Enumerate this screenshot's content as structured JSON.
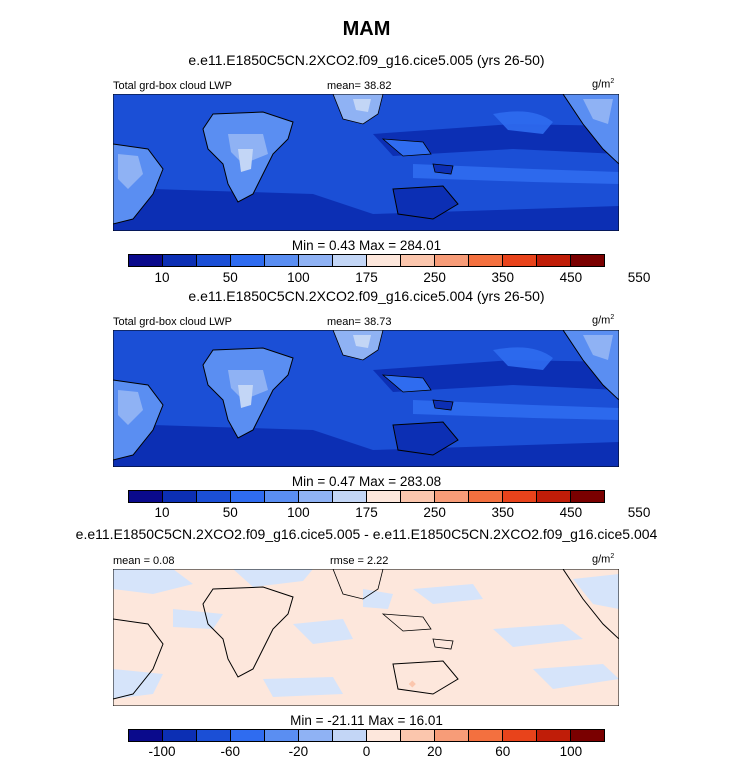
{
  "figure": {
    "title": "MAM",
    "units": "g/m",
    "units_exp": "2"
  },
  "panels": [
    {
      "title": "e.e11.E1850C5CN.2XCO2.f09_g16.cice5.005 (yrs 26-50)",
      "left_label": "Total grd-box cloud LWP",
      "center_label": "mean=  38.82",
      "minmax": "Min =   0.43 Max = 284.01"
    },
    {
      "title": "e.e11.E1850C5CN.2XCO2.f09_g16.cice5.004 (yrs 26-50)",
      "left_label": "Total grd-box cloud LWP",
      "center_label": "mean=  38.73",
      "minmax": "Min =   0.47 Max = 283.08"
    },
    {
      "title": "e.e11.E1850C5CN.2XCO2.f09_g16.cice5.005 - e.e11.E1850C5CN.2XCO2.f09_g16.cice5.004",
      "left_label": "mean =   0.08",
      "center_label": "rmse =   2.22",
      "minmax": "Min = -21.11 Max =  16.01"
    }
  ],
  "colorbars": {
    "field": {
      "colors": [
        "#0a0a8c",
        "#0c2fb4",
        "#1b4fd6",
        "#2f6cf0",
        "#5a8ef2",
        "#8fb2f4",
        "#c3d6f6",
        "#fde7dc",
        "#fbc6ad",
        "#f79c78",
        "#f3703f",
        "#e8431b",
        "#c01d08",
        "#7a0000"
      ],
      "tick_labels": [
        "10",
        "50",
        "100",
        "175",
        "250",
        "350",
        "450",
        "550"
      ]
    },
    "diff": {
      "colors": [
        "#0a0a8c",
        "#0c2fb4",
        "#1b4fd6",
        "#2f6cf0",
        "#5a8ef2",
        "#8fb2f4",
        "#c3d6f6",
        "#fde7dc",
        "#fbc6ad",
        "#f79c78",
        "#f3703f",
        "#e8431b",
        "#c01d08",
        "#7a0000"
      ],
      "tick_labels": [
        "-100",
        "-60",
        "-20",
        "0",
        "20",
        "60",
        "100"
      ]
    }
  },
  "chart_data": {
    "type": "heatmap",
    "title": "MAM",
    "variable": "Total grd-box cloud LWP",
    "units": "g/m2",
    "panels": [
      {
        "case": "e.e11.E1850C5CN.2XCO2.f09_g16.cice5.005 (yrs 26-50)",
        "mean": 38.82,
        "min": 0.43,
        "max": 284.01
      },
      {
        "case": "e.e11.E1850C5CN.2XCO2.f09_g16.cice5.004 (yrs 26-50)",
        "mean": 38.73,
        "min": 0.47,
        "max": 283.08
      },
      {
        "case": "difference 005 - 004",
        "mean": 0.08,
        "rmse": 2.22,
        "min": -21.11,
        "max": 16.01
      }
    ],
    "field_levels": [
      10,
      50,
      100,
      175,
      250,
      350,
      450,
      550
    ],
    "diff_levels": [
      -100,
      -60,
      -20,
      0,
      20,
      60,
      100
    ]
  }
}
